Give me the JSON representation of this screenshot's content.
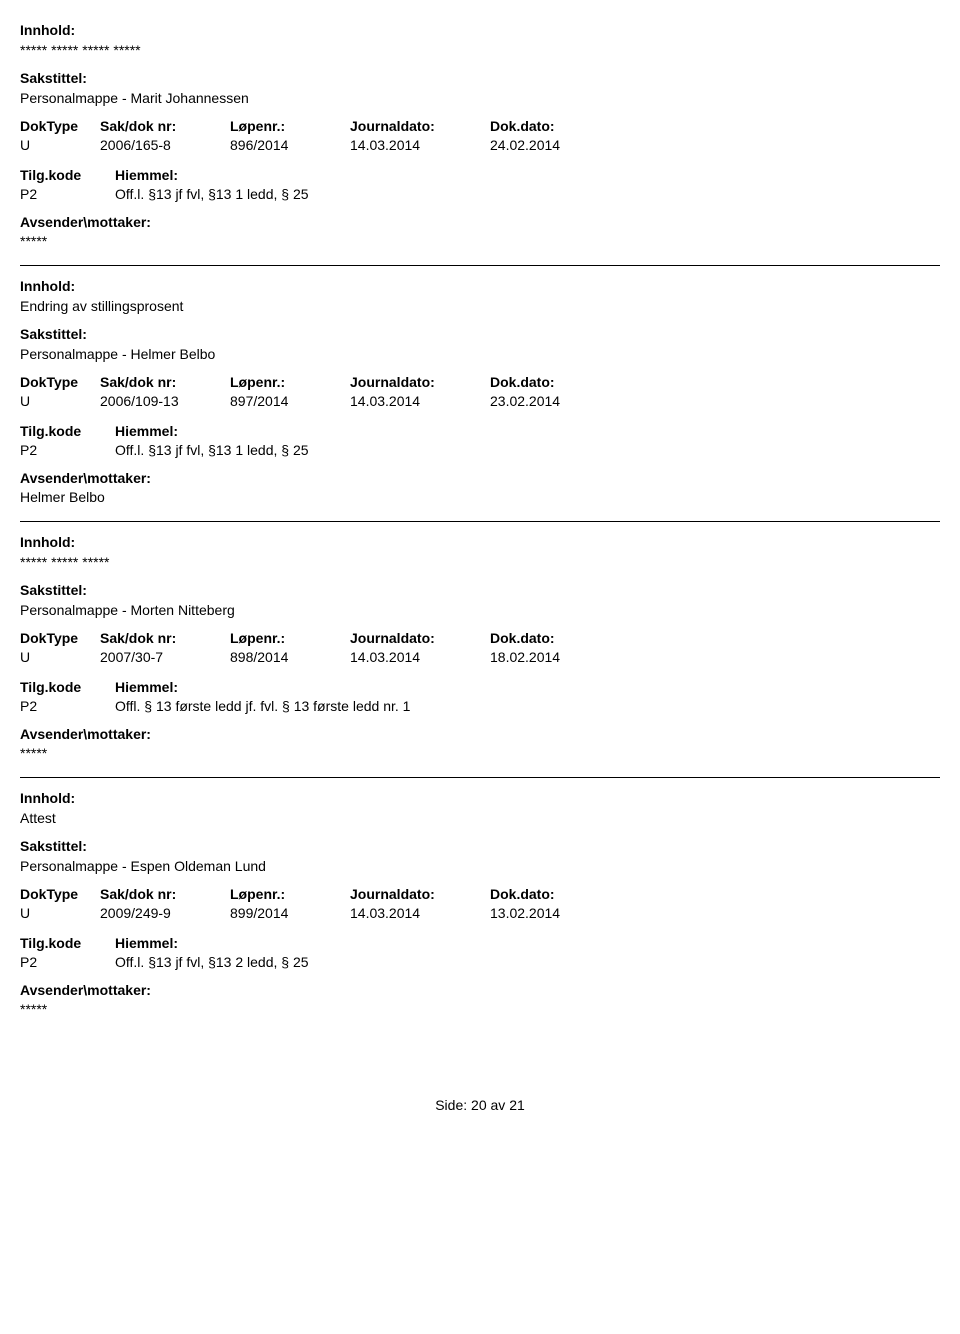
{
  "labels": {
    "innhold": "Innhold:",
    "sakstittel": "Sakstittel:",
    "doktype": "DokType",
    "sakdoknr": "Sak/dok nr:",
    "lopenr": "Løpenr.:",
    "journaldato": "Journaldato:",
    "dokdato": "Dok.dato:",
    "tilgkode": "Tilg.kode",
    "hiemmel": "Hiemmel:",
    "avsender": "Avsender\\mottaker:",
    "side": "Side:",
    "av": "av"
  },
  "records": [
    {
      "innhold": "***** ***** ***** *****",
      "sakstittel": "Personalmappe - Marit Johannessen",
      "doktype": "U",
      "sakdoknr": "2006/165-8",
      "lopenr": "896/2014",
      "journaldato": "14.03.2014",
      "dokdato": "24.02.2014",
      "tilgkode": "P2",
      "hiemmel": "Off.l. §13 jf fvl, §13 1 ledd, § 25",
      "avsender": "*****"
    },
    {
      "innhold": "Endring av stillingsprosent",
      "sakstittel": "Personalmappe - Helmer Belbo",
      "doktype": "U",
      "sakdoknr": "2006/109-13",
      "lopenr": "897/2014",
      "journaldato": "14.03.2014",
      "dokdato": "23.02.2014",
      "tilgkode": "P2",
      "hiemmel": "Off.l. §13 jf fvl, §13 1 ledd, § 25",
      "avsender": "Helmer Belbo"
    },
    {
      "innhold": "***** ***** *****",
      "sakstittel": "Personalmappe - Morten Nitteberg",
      "doktype": "U",
      "sakdoknr": "2007/30-7",
      "lopenr": "898/2014",
      "journaldato": "14.03.2014",
      "dokdato": "18.02.2014",
      "tilgkode": "P2",
      "hiemmel": "Offl. § 13 første ledd jf. fvl. § 13 første ledd nr. 1",
      "avsender": "*****"
    },
    {
      "innhold": "Attest",
      "sakstittel": "Personalmappe - Espen Oldeman Lund",
      "doktype": "U",
      "sakdoknr": "2009/249-9",
      "lopenr": "899/2014",
      "journaldato": "14.03.2014",
      "dokdato": "13.02.2014",
      "tilgkode": "P2",
      "hiemmel": "Off.l. §13 jf fvl, §13 2 ledd, § 25",
      "avsender": "*****"
    }
  ],
  "page": {
    "current": "20",
    "total": "21"
  }
}
